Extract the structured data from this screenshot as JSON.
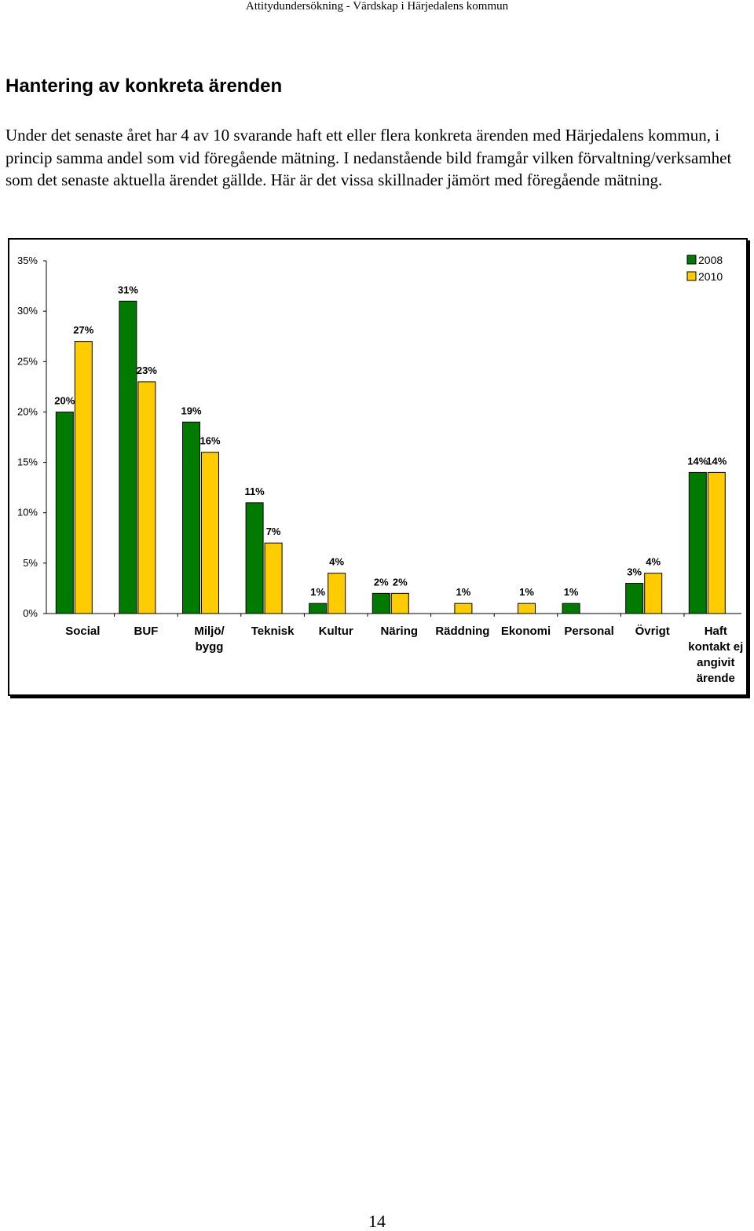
{
  "header": {
    "running_title": "Attitydundersökning - Värdskap i Härjedalens kommun"
  },
  "section": {
    "title": "Hantering av konkreta ärenden",
    "intro": "Under det senaste året har 4 av 10 svarande haft ett eller flera konkreta ärenden med Härjedalens kommun, i princip samma andel som vid föregående mätning. I nedanstående bild framgår vilken förvaltning/verksamhet som det senaste aktuella ärendet gällde. Här är det vissa skillnader jämört med föregående mätning."
  },
  "chart_data": {
    "type": "bar",
    "title": "",
    "xlabel": "",
    "ylabel": "",
    "categories": [
      [
        "Social"
      ],
      [
        "BUF"
      ],
      [
        "Miljö/",
        "bygg"
      ],
      [
        "Teknisk"
      ],
      [
        "Kultur"
      ],
      [
        "Näring"
      ],
      [
        "Räddning"
      ],
      [
        "Ekonomi"
      ],
      [
        "Personal"
      ],
      [
        "Övrigt"
      ],
      [
        "Haft",
        "kontakt ej",
        "angivit",
        "ärende"
      ]
    ],
    "series": [
      {
        "name": "2008",
        "color": "#007a00",
        "values": [
          20,
          31,
          19,
          11,
          1,
          2,
          null,
          null,
          1,
          3,
          14
        ],
        "labels": [
          "20%",
          "31%",
          "19%",
          "11%",
          "1%",
          "2%",
          "",
          "",
          "1%",
          "3%",
          "14%"
        ]
      },
      {
        "name": "2010",
        "color": "#ffcc00",
        "values": [
          27,
          23,
          16,
          7,
          4,
          2,
          1,
          1,
          null,
          4,
          14
        ],
        "labels": [
          "27%",
          "23%",
          "16%",
          "7%",
          "4%",
          "2%",
          "1%",
          "1%",
          "",
          "4%",
          "14%"
        ]
      }
    ],
    "ylim": [
      0,
      35
    ],
    "yticks": [
      0,
      5,
      10,
      15,
      20,
      25,
      30,
      35
    ],
    "ytick_labels": [
      "0%",
      "5%",
      "10%",
      "15%",
      "20%",
      "25%",
      "30%",
      "35%"
    ],
    "grid": false,
    "legend_position": "top-right"
  },
  "footer": {
    "page_number": "14"
  }
}
